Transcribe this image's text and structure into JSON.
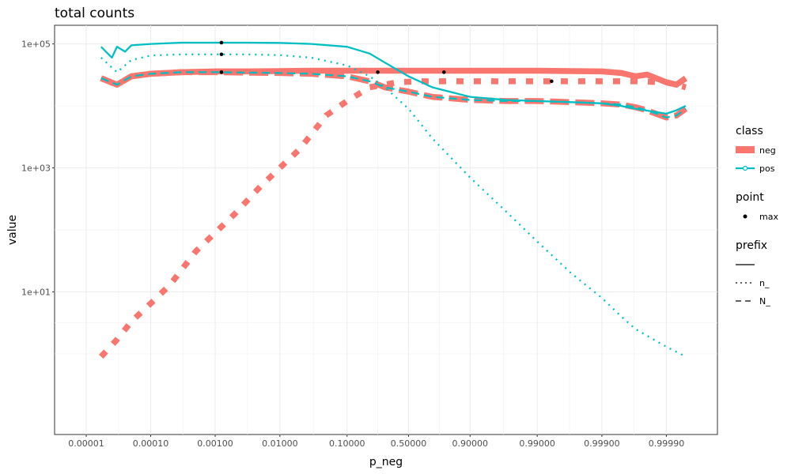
{
  "chart_data": {
    "type": "line",
    "title": "total counts",
    "xlabel": "p_neg",
    "ylabel": "value",
    "x_scale": "logit",
    "y_scale": "log10",
    "xlim": [
      1e-05,
      0.99995
    ],
    "ylim": [
      0.05,
      200000
    ],
    "grid": true,
    "x_ticks": [
      {
        "value": 1e-05,
        "label": "0.00001"
      },
      {
        "value": 0.0001,
        "label": "0.00010"
      },
      {
        "value": 0.001,
        "label": "0.00100"
      },
      {
        "value": 0.01,
        "label": "0.01000"
      },
      {
        "value": 0.1,
        "label": "0.10000"
      },
      {
        "value": 0.5,
        "label": "0.50000"
      },
      {
        "value": 0.9,
        "label": "0.90000"
      },
      {
        "value": 0.99,
        "label": "0.99000"
      },
      {
        "value": 0.999,
        "label": "0.99900"
      },
      {
        "value": 0.9999,
        "label": "0.99990"
      }
    ],
    "y_ticks": [
      {
        "value": 10,
        "label": "1e+01"
      },
      {
        "value": 1000,
        "label": "1e+03"
      },
      {
        "value": 100000,
        "label": "1e+05"
      }
    ],
    "colors": {
      "neg": "#F8766D",
      "pos": "#00BFC4",
      "max": "#000000"
    },
    "series": [
      {
        "class": "neg",
        "prefix": "",
        "x": [
          1.7e-05,
          3e-05,
          5e-05,
          0.0001,
          0.0003,
          0.001,
          0.003,
          0.01,
          0.03,
          0.1,
          0.2,
          0.3,
          0.5,
          0.7,
          0.9,
          0.97,
          0.99,
          0.997,
          0.999,
          0.9995,
          0.9997,
          0.9998,
          0.9999,
          0.99993,
          0.99995
        ],
        "y": [
          28000,
          22000,
          30000,
          33000,
          35000,
          36000,
          36000,
          36500,
          37000,
          37000,
          37000,
          37000,
          37000,
          37000,
          37000,
          37000,
          37000,
          36500,
          36000,
          34000,
          30000,
          32000,
          24000,
          22000,
          28000
        ]
      },
      {
        "class": "neg",
        "prefix": "n_",
        "x": [
          1.7e-05,
          3e-05,
          5e-05,
          0.0001,
          0.0002,
          0.0005,
          0.001,
          0.002,
          0.005,
          0.01,
          0.02,
          0.05,
          0.1,
          0.2,
          0.4,
          0.6,
          0.8,
          0.9,
          0.95,
          0.99,
          0.995,
          0.999,
          0.9997,
          0.9999,
          0.99993,
          0.99995
        ],
        "y": [
          0.9,
          1.7,
          3.3,
          6.5,
          13,
          45,
          90,
          180,
          500,
          1000,
          2000,
          7000,
          12000,
          20000,
          24000,
          25000,
          25000,
          25000,
          25000,
          25000,
          25000,
          25000,
          25000,
          24000,
          22000,
          20000
        ]
      },
      {
        "class": "neg",
        "prefix": "N_",
        "x": [
          1.7e-05,
          3e-05,
          5e-05,
          0.0001,
          0.0003,
          0.001,
          0.003,
          0.01,
          0.03,
          0.1,
          0.2,
          0.3,
          0.5,
          0.7,
          0.9,
          0.97,
          0.99,
          0.997,
          0.999,
          0.9995,
          0.9997,
          0.9998,
          0.9999,
          0.99993,
          0.99995
        ],
        "y": [
          28000,
          22000,
          30000,
          33000,
          35000,
          35000,
          34500,
          34000,
          33000,
          30000,
          25000,
          20000,
          17000,
          14000,
          12500,
          12000,
          12000,
          11500,
          11000,
          10500,
          9500,
          8500,
          6500,
          7000,
          9000
        ]
      },
      {
        "class": "pos",
        "prefix": "",
        "x": [
          1.7e-05,
          2.5e-05,
          3e-05,
          4e-05,
          5e-05,
          0.0001,
          0.0003,
          0.001,
          0.003,
          0.01,
          0.03,
          0.1,
          0.2,
          0.3,
          0.5,
          0.7,
          0.9,
          0.97,
          0.99,
          0.997,
          0.999,
          0.9995,
          0.9997,
          0.9999,
          0.99993,
          0.99995
        ],
        "y": [
          90000,
          60000,
          90000,
          75000,
          95000,
          100000,
          105000,
          105000,
          105000,
          104000,
          100000,
          90000,
          70000,
          50000,
          30000,
          20000,
          14000,
          12500,
          12000,
          11500,
          11000,
          10000,
          9000,
          7500,
          8500,
          10000
        ]
      },
      {
        "class": "pos",
        "prefix": "n_",
        "x": [
          1.7e-05,
          3e-05,
          5e-05,
          0.0001,
          0.0003,
          0.001,
          0.003,
          0.01,
          0.03,
          0.1,
          0.2,
          0.3,
          0.5,
          0.7,
          0.9,
          0.97,
          0.99,
          0.997,
          0.999,
          0.9995,
          0.9997,
          0.9999,
          0.99995
        ],
        "y": [
          60000,
          35000,
          55000,
          65000,
          68000,
          68000,
          68000,
          66000,
          60000,
          45000,
          30000,
          20000,
          9000,
          3000,
          700,
          200,
          65,
          20,
          8,
          4,
          2.5,
          1.3,
          0.9
        ]
      },
      {
        "class": "pos",
        "prefix": "N_",
        "x": [
          1.7e-05,
          3e-05,
          5e-05,
          0.0001,
          0.0003,
          0.001,
          0.003,
          0.01,
          0.03,
          0.1,
          0.2,
          0.3,
          0.5,
          0.7,
          0.9,
          0.97,
          0.99,
          0.997,
          0.999,
          0.9995,
          0.9997,
          0.9998,
          0.9999,
          0.99993,
          0.99995
        ],
        "y": [
          28000,
          22000,
          30000,
          33000,
          35000,
          35000,
          34500,
          34000,
          33000,
          30000,
          25000,
          20000,
          17000,
          14000,
          12500,
          12000,
          12000,
          11500,
          11000,
          10500,
          9500,
          8500,
          6500,
          7000,
          9000
        ]
      }
    ],
    "max_points": [
      {
        "x": 0.00125,
        "y": 105000
      },
      {
        "x": 0.00125,
        "y": 68000
      },
      {
        "x": 0.00125,
        "y": 35000
      },
      {
        "x": 0.25,
        "y": 35000
      },
      {
        "x": 0.78,
        "y": 35000
      },
      {
        "x": 0.994,
        "y": 25000
      }
    ],
    "legend": {
      "position": "right",
      "groups": [
        {
          "title": "class",
          "items": [
            "neg",
            "pos"
          ]
        },
        {
          "title": "point",
          "items": [
            "max"
          ]
        },
        {
          "title": "prefix",
          "items": [
            "",
            "n_",
            "N_"
          ]
        }
      ]
    }
  }
}
